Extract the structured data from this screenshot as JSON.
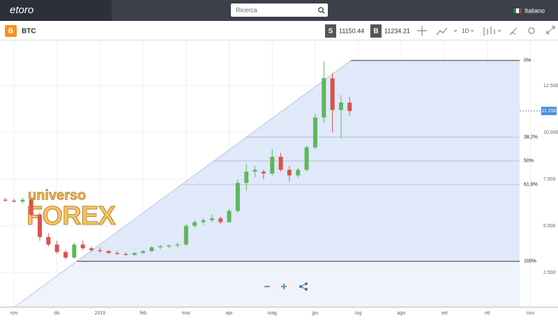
{
  "top_bar": {
    "logo": "etoro",
    "search_placeholder": "Ricerca",
    "language": "Italiano"
  },
  "toolbar": {
    "asset_icon": "B",
    "symbol": "BTC",
    "sell_label": "S",
    "sell_price": 11150.44,
    "buy_label": "B",
    "buy_price": 11234.21,
    "timeframe": "1D"
  },
  "watermark": [
    "universo",
    "FOREX"
  ],
  "chart_data": {
    "type": "candlestick",
    "up_color": "#5cb85c",
    "down_color": "#d9534f",
    "xlim": [
      -0.324,
      12.64
    ],
    "xticks": [
      {
        "value": 0,
        "label": "nov"
      },
      {
        "value": 1,
        "label": "dic"
      },
      {
        "value": 2,
        "label": "2019"
      },
      {
        "value": 3,
        "label": "feb"
      },
      {
        "value": 4,
        "label": "mar"
      },
      {
        "value": 5,
        "label": "apr"
      },
      {
        "value": 6,
        "label": "mag"
      },
      {
        "value": 7,
        "label": "giu"
      },
      {
        "value": 8,
        "label": "lug"
      },
      {
        "value": 9,
        "label": "ago"
      },
      {
        "value": 10,
        "label": "set"
      },
      {
        "value": 11,
        "label": "ott"
      },
      {
        "value": 12,
        "label": "nov"
      }
    ],
    "ylim": [
      670,
      14925
    ],
    "yticks": [
      {
        "value": 2500,
        "label": "2.500"
      },
      {
        "value": 5000,
        "label": "5.000"
      },
      {
        "value": 7500,
        "label": "7.500"
      },
      {
        "value": 10000,
        "label": "10.000"
      },
      {
        "value": 12500,
        "label": "12.500"
      }
    ],
    "grid": true,
    "x": [
      -0.2,
      0.0,
      0.2,
      0.4,
      0.6,
      0.8,
      1.0,
      1.2,
      1.4,
      1.6,
      1.8,
      2.0,
      2.2,
      2.4,
      2.6,
      2.8,
      3.0,
      3.2,
      3.4,
      3.6,
      3.8,
      4.0,
      4.2,
      4.4,
      4.6,
      4.8,
      5.0,
      5.2,
      5.4,
      5.6,
      5.8,
      6.0,
      6.2,
      6.4,
      6.6,
      6.8,
      7.0,
      7.2,
      7.4,
      7.6,
      7.8
    ],
    "open": [
      6400,
      6350,
      6300,
      6400,
      5600,
      4400,
      4000,
      3600,
      3300,
      4000,
      3800,
      3700,
      3650,
      3550,
      3500,
      3450,
      3550,
      3650,
      3850,
      3900,
      3950,
      4000,
      5000,
      5200,
      5300,
      5400,
      5200,
      5800,
      7300,
      7900,
      7900,
      7800,
      8700,
      8000,
      7700,
      8000,
      9200,
      10800,
      12900,
      11200,
      11600
    ],
    "high": [
      6500,
      6450,
      6500,
      6450,
      5700,
      4600,
      4200,
      3700,
      4100,
      4200,
      3900,
      3850,
      3700,
      3650,
      3600,
      3600,
      3700,
      3900,
      4000,
      4000,
      4100,
      5100,
      5300,
      5400,
      5600,
      5500,
      5900,
      7500,
      8300,
      8200,
      8000,
      9100,
      8900,
      8200,
      8100,
      9300,
      11000,
      13800,
      13200,
      12000,
      11900
    ],
    "low": [
      6300,
      6250,
      6200,
      5500,
      4200,
      3900,
      3500,
      3200,
      3250,
      3700,
      3600,
      3550,
      3500,
      3450,
      3400,
      3400,
      3500,
      3600,
      3750,
      3800,
      3850,
      3950,
      4900,
      5050,
      5200,
      5100,
      5150,
      5700,
      6900,
      7600,
      7500,
      7700,
      7900,
      7400,
      7600,
      7900,
      9100,
      10500,
      10000,
      9700,
      10900
    ],
    "close": [
      6350,
      6300,
      6400,
      5600,
      4400,
      4000,
      3600,
      3300,
      4000,
      3800,
      3700,
      3650,
      3550,
      3500,
      3450,
      3550,
      3650,
      3850,
      3900,
      3950,
      4000,
      5000,
      5200,
      5300,
      5400,
      5200,
      5800,
      7300,
      7900,
      8000,
      7800,
      8700,
      8000,
      7700,
      8000,
      9200,
      10800,
      12900,
      11200,
      11600,
      11150
    ],
    "fib_x": [
      1.46,
      7.83
    ],
    "fib_levels": {
      "labels": [
        "0%",
        "38.2%",
        "50%",
        "61.8%",
        "100%"
      ],
      "values": [
        13850,
        9743,
        8475,
        7207,
        3100
      ]
    },
    "current_price": {
      "value": 11150,
      "label": "11.150"
    }
  }
}
